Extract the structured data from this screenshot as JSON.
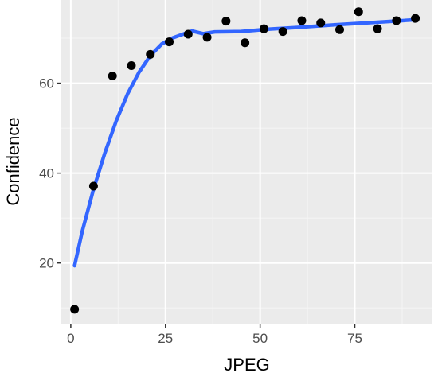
{
  "chart_data": {
    "type": "scatter",
    "title": "",
    "xlabel": "JPEG",
    "ylabel": "Confidence",
    "xlim": [
      -2.5,
      95.5
    ],
    "ylim": [
      6.5,
      78.5
    ],
    "grid": true,
    "x_ticks": [
      0,
      25,
      50,
      75
    ],
    "x_tick_labels": [
      "0",
      "25",
      "50",
      "75"
    ],
    "y_ticks": [
      20,
      40,
      60
    ],
    "y_tick_labels": [
      "20",
      "40",
      "60"
    ],
    "points": [
      {
        "x": 1,
        "y": 9.7
      },
      {
        "x": 6,
        "y": 37.1
      },
      {
        "x": 11,
        "y": 61.6
      },
      {
        "x": 16,
        "y": 63.9
      },
      {
        "x": 21,
        "y": 66.4
      },
      {
        "x": 26,
        "y": 69.2
      },
      {
        "x": 31,
        "y": 70.9
      },
      {
        "x": 36,
        "y": 70.2
      },
      {
        "x": 41,
        "y": 73.8
      },
      {
        "x": 46,
        "y": 69.0
      },
      {
        "x": 51,
        "y": 72.1
      },
      {
        "x": 56,
        "y": 71.5
      },
      {
        "x": 61,
        "y": 73.9
      },
      {
        "x": 66,
        "y": 73.4
      },
      {
        "x": 71,
        "y": 71.9
      },
      {
        "x": 76,
        "y": 75.9
      },
      {
        "x": 81,
        "y": 72.1
      },
      {
        "x": 86,
        "y": 73.9
      },
      {
        "x": 91,
        "y": 74.4
      }
    ],
    "trend": [
      {
        "x": 1,
        "y": 19.4
      },
      {
        "x": 3,
        "y": 27.0
      },
      {
        "x": 6,
        "y": 36.4
      },
      {
        "x": 9,
        "y": 44.5
      },
      {
        "x": 12,
        "y": 51.6
      },
      {
        "x": 15,
        "y": 57.6
      },
      {
        "x": 18,
        "y": 62.4
      },
      {
        "x": 21,
        "y": 66.1
      },
      {
        "x": 24,
        "y": 68.7
      },
      {
        "x": 27,
        "y": 70.1
      },
      {
        "x": 30,
        "y": 71.0
      },
      {
        "x": 32,
        "y": 71.6
      },
      {
        "x": 35,
        "y": 71.0
      },
      {
        "x": 38,
        "y": 71.4
      },
      {
        "x": 45,
        "y": 71.5
      },
      {
        "x": 52,
        "y": 72.0
      },
      {
        "x": 60,
        "y": 72.4
      },
      {
        "x": 70,
        "y": 73.0
      },
      {
        "x": 80,
        "y": 73.5
      },
      {
        "x": 91,
        "y": 74.1
      }
    ],
    "colors": {
      "panel": "#ebebeb",
      "grid_major": "#ffffff",
      "grid_minor": "#f5f5f5",
      "point": "#000000",
      "trend": "#3366ff",
      "tick": "#333333"
    }
  }
}
